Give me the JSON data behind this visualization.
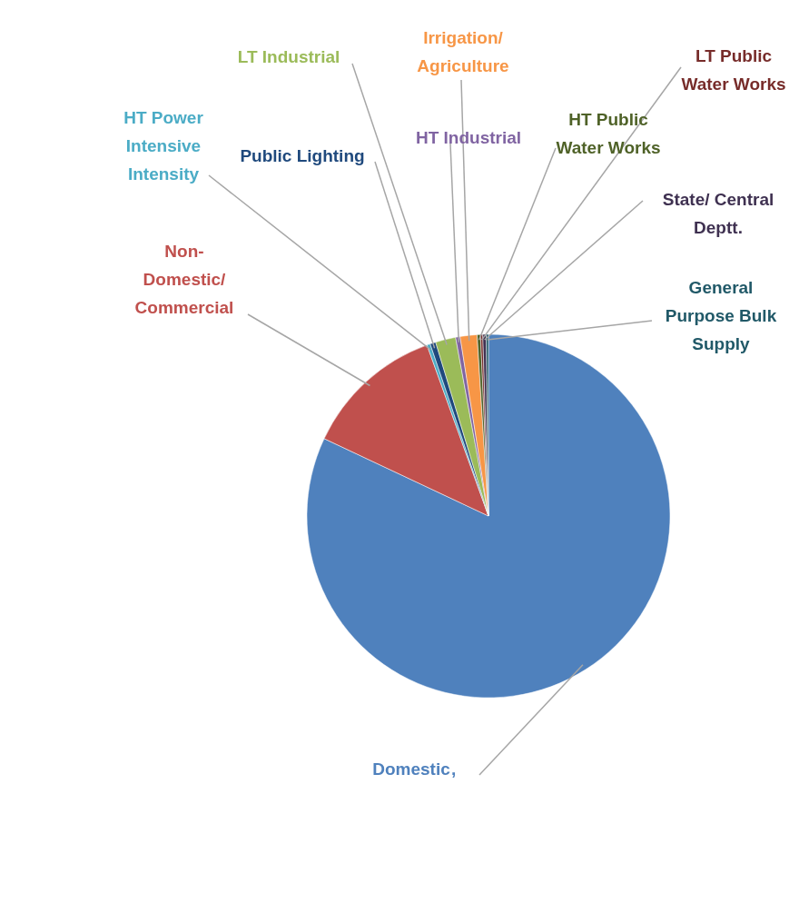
{
  "chart_data": {
    "type": "pie",
    "annotations": [
      ","
    ],
    "categories": [
      "Domestic",
      "Non-Domestic/ Commercial",
      "HT Power Intensive Intensity",
      "Public Lighting",
      "LT Industrial",
      "HT Industrial",
      "Irrigation/ Agriculture",
      "HT Public Water Works",
      "LT Public Water Works",
      "State/ Central Deptt.",
      "General Purpose Bulk Supply"
    ],
    "values": [
      82,
      12.5,
      0.3,
      0.5,
      1.8,
      0.4,
      1.5,
      0.3,
      0.2,
      0.3,
      0.2
    ],
    "colors": [
      "#4f81bd",
      "#c0504d",
      "#4bacc6",
      "#1f497d",
      "#9bbb59",
      "#8064a2",
      "#f79646",
      "#4f6228",
      "#772c2a",
      "#3f3151",
      "#215968"
    ]
  }
}
